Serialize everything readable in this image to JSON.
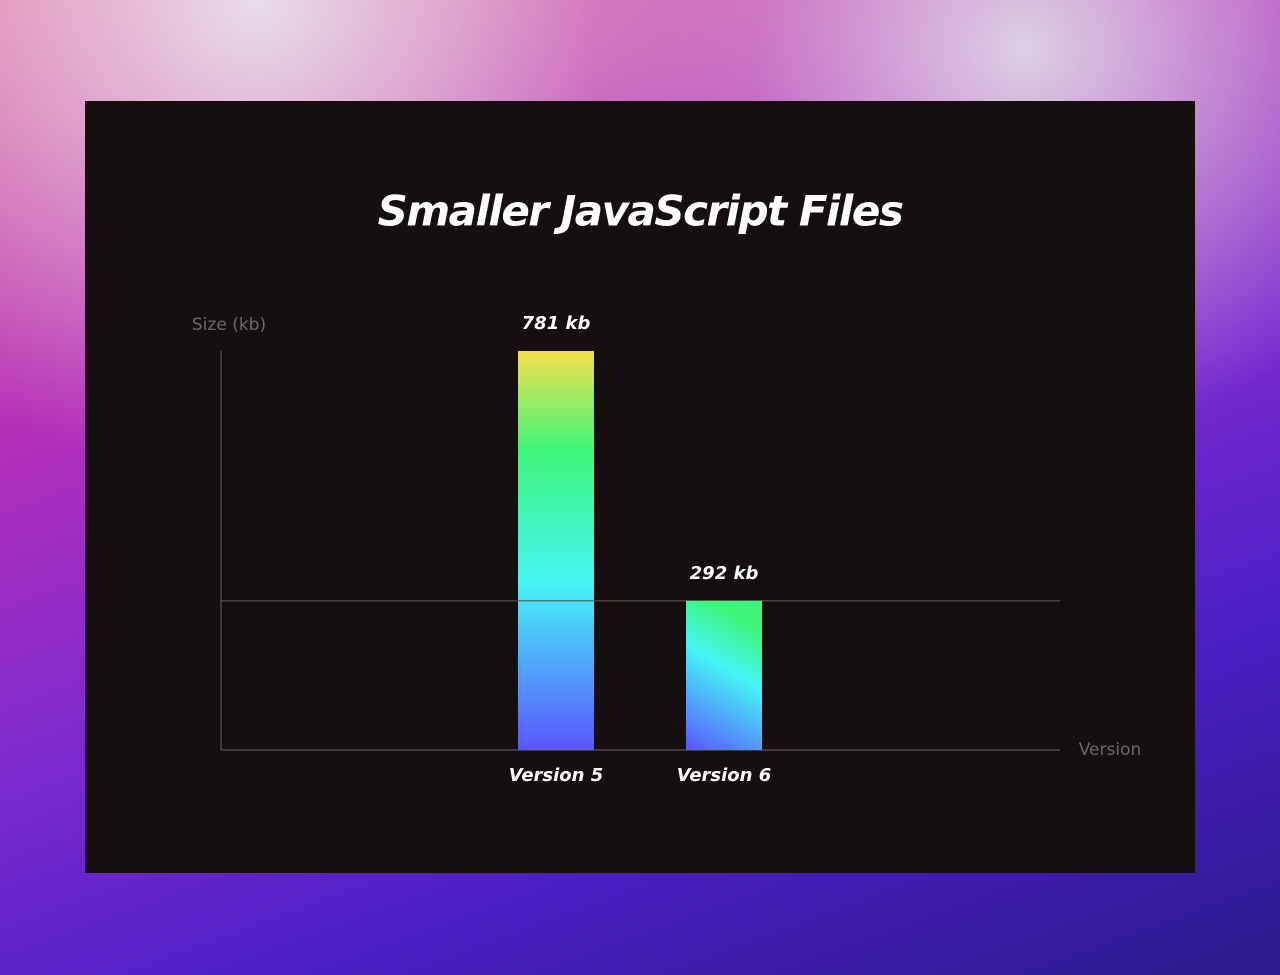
{
  "chart_data": {
    "type": "bar",
    "title": "Smaller JavaScript Files",
    "y_label": "Size (kb)",
    "x_label": "Version",
    "categories": [
      "Version 5",
      "Version 6"
    ],
    "values": [
      781,
      292
    ],
    "value_labels": [
      "781 kb",
      "292 kb"
    ],
    "ylim": [
      0,
      781
    ]
  }
}
